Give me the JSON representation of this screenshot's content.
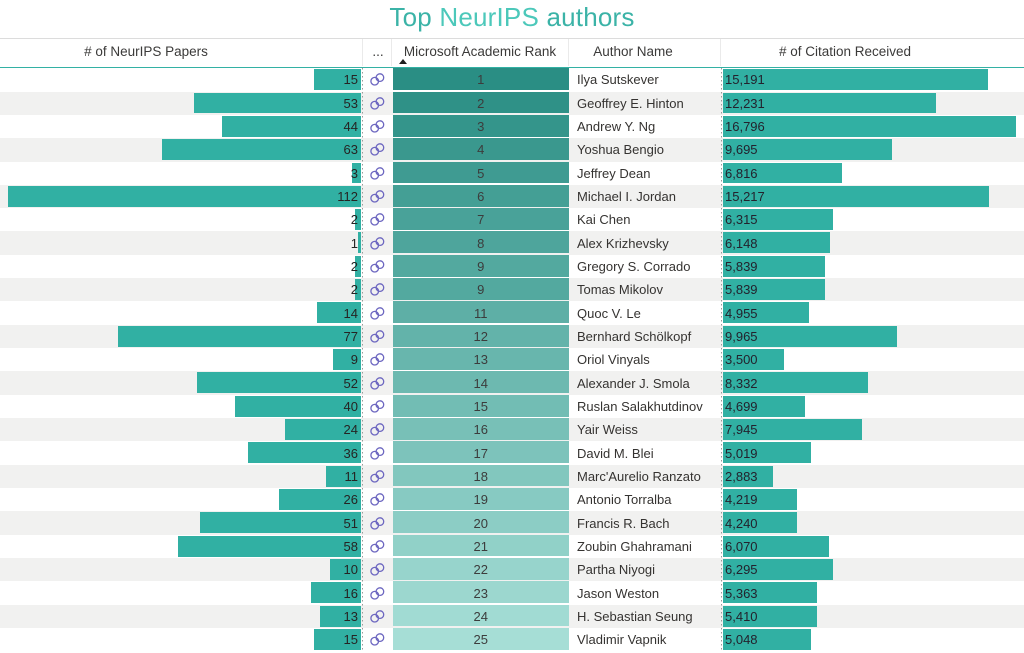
{
  "title": {
    "part1": "Top ",
    "part2": "NeurIPS",
    "part3": " authors"
  },
  "columns": {
    "papers": "# of NeurIPS Papers",
    "link": "...",
    "rank": "Microsoft Academic Rank",
    "author": "Author Name",
    "citations": "# of Citation Received"
  },
  "colors": {
    "bar_teal": "#31b0a3",
    "rank_scale_dark": "#2a8e84",
    "rank_scale_light": "#a6ded6",
    "title_main": "#3bb3a7",
    "title_highlight": "#4cc8ba",
    "link_icon": "#6c66c0",
    "alt_row": "#f1f1f0",
    "header_rule": "#33b1a4"
  },
  "icons": {
    "link": "link-icon",
    "sort": "sort-ascending-icon"
  },
  "chart_data": {
    "type": "table",
    "title": "Top NeurIPS authors",
    "columns": [
      "# of NeurIPS Papers",
      "Microsoft Academic Rank",
      "Author Name",
      "# of Citation Received"
    ],
    "sort": {
      "column": "Microsoft Academic Rank",
      "direction": "ascending"
    },
    "papers_axis_max": 112,
    "citations_axis_max": 16796,
    "rows": [
      {
        "papers": 15,
        "rank": 1,
        "author": "Ilya Sutskever",
        "citations": 15191
      },
      {
        "papers": 53,
        "rank": 2,
        "author": "Geoffrey E. Hinton",
        "citations": 12231
      },
      {
        "papers": 44,
        "rank": 3,
        "author": "Andrew Y. Ng",
        "citations": 16796
      },
      {
        "papers": 63,
        "rank": 4,
        "author": "Yoshua Bengio",
        "citations": 9695
      },
      {
        "papers": 3,
        "rank": 5,
        "author": "Jeffrey Dean",
        "citations": 6816
      },
      {
        "papers": 112,
        "rank": 6,
        "author": "Michael I. Jordan",
        "citations": 15217
      },
      {
        "papers": 2,
        "rank": 7,
        "author": "Kai Chen",
        "citations": 6315
      },
      {
        "papers": 1,
        "rank": 8,
        "author": "Alex Krizhevsky",
        "citations": 6148
      },
      {
        "papers": 2,
        "rank": 9,
        "author": "Gregory S. Corrado",
        "citations": 5839
      },
      {
        "papers": 2,
        "rank": 9,
        "author": "Tomas Mikolov",
        "citations": 5839
      },
      {
        "papers": 14,
        "rank": 11,
        "author": "Quoc V. Le",
        "citations": 4955
      },
      {
        "papers": 77,
        "rank": 12,
        "author": "Bernhard Schölkopf",
        "citations": 9965
      },
      {
        "papers": 9,
        "rank": 13,
        "author": "Oriol Vinyals",
        "citations": 3500
      },
      {
        "papers": 52,
        "rank": 14,
        "author": "Alexander J. Smola",
        "citations": 8332
      },
      {
        "papers": 40,
        "rank": 15,
        "author": "Ruslan Salakhutdinov",
        "citations": 4699
      },
      {
        "papers": 24,
        "rank": 16,
        "author": "Yair Weiss",
        "citations": 7945
      },
      {
        "papers": 36,
        "rank": 17,
        "author": "David M. Blei",
        "citations": 5019
      },
      {
        "papers": 11,
        "rank": 18,
        "author": "Marc'Aurelio Ranzato",
        "citations": 2883
      },
      {
        "papers": 26,
        "rank": 19,
        "author": "Antonio Torralba",
        "citations": 4219
      },
      {
        "papers": 51,
        "rank": 20,
        "author": "Francis R. Bach",
        "citations": 4240
      },
      {
        "papers": 58,
        "rank": 21,
        "author": "Zoubin Ghahramani",
        "citations": 6070
      },
      {
        "papers": 10,
        "rank": 22,
        "author": "Partha Niyogi",
        "citations": 6295
      },
      {
        "papers": 16,
        "rank": 23,
        "author": "Jason Weston",
        "citations": 5363
      },
      {
        "papers": 13,
        "rank": 24,
        "author": "H. Sebastian Seung",
        "citations": 5410
      },
      {
        "papers": 15,
        "rank": 25,
        "author": "Vladimir Vapnik",
        "citations": 5048
      }
    ]
  }
}
